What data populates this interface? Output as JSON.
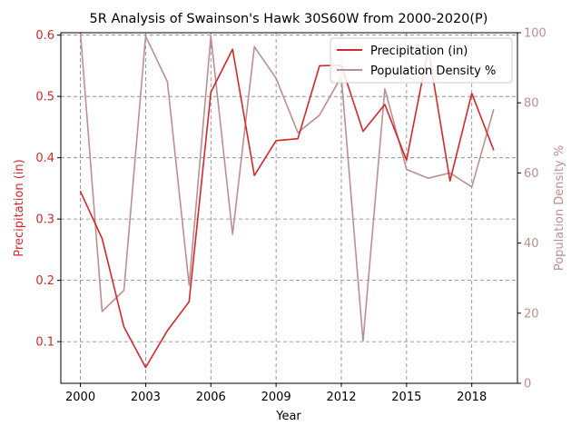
{
  "chart_data": {
    "type": "line",
    "title": "5R Analysis of Swainson's Hawk 30S60W from 2000-2020(P)",
    "xlabel": "Year",
    "ylabel_left": "Precipitation (in)",
    "ylabel_right": "Population Density %",
    "x": [
      2000,
      2001,
      2002,
      2003,
      2004,
      2005,
      2006,
      2007,
      2008,
      2009,
      2010,
      2011,
      2012,
      2013,
      2014,
      2015,
      2016,
      2017,
      2018,
      2019
    ],
    "xlim": [
      1999.1,
      2020.1
    ],
    "x_ticks": [
      "2000",
      "2003",
      "2006",
      "2009",
      "2012",
      "2015",
      "2018"
    ],
    "ylim_left": [
      0.032,
      0.604
    ],
    "ylim_right": [
      0,
      100
    ],
    "y_ticks_left": [
      "0.1",
      "0.2",
      "0.3",
      "0.4",
      "0.5",
      "0.6"
    ],
    "y_ticks_right": [
      "0",
      "20",
      "40",
      "60",
      "80",
      "100"
    ],
    "grid": true,
    "legend_position": "top-right",
    "series": [
      {
        "name": "Precipitation (in)",
        "axis": "left",
        "color": "#d62728",
        "values": [
          0.345,
          0.268,
          0.124,
          0.058,
          0.118,
          0.165,
          0.507,
          0.577,
          0.371,
          0.428,
          0.431,
          0.55,
          0.551,
          0.443,
          0.487,
          0.396,
          0.577,
          0.362,
          0.505,
          0.413
        ]
      },
      {
        "name": "Population Density %",
        "axis": "right",
        "color": "#bc8f8f",
        "values": [
          100,
          20.5,
          26.5,
          99,
          86,
          28,
          99,
          42.5,
          96,
          87,
          71.5,
          76.5,
          87.5,
          12,
          84,
          61,
          58.5,
          60,
          56,
          78
        ]
      }
    ],
    "colors": {
      "left_axis": "#d62728",
      "right_axis": "#bc8f8f",
      "grid": "#808080"
    }
  }
}
